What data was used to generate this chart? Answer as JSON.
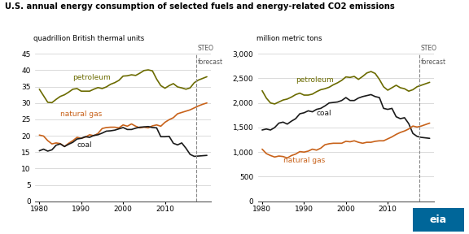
{
  "title": "U.S. annual energy consumption of selected fuels and energy-related CO2 emissions",
  "left_ylabel": "quadrillion British thermal units",
  "right_ylabel": "million metric tons",
  "steo_label": "STEO\nforecast",
  "forecast_year": 2017.5,
  "colors": {
    "petroleum": "#6b6b00",
    "natural_gas": "#c8621a",
    "coal": "#1a1a1a"
  },
  "left_chart": {
    "ylim": [
      0,
      45
    ],
    "yticks": [
      0,
      5,
      10,
      15,
      20,
      25,
      30,
      35,
      40,
      45
    ],
    "xticks": [
      1980,
      1990,
      2000,
      2010
    ],
    "xlim": [
      1979,
      2021
    ],
    "petroleum": [
      34.2,
      32.2,
      30.2,
      30.1,
      31.1,
      32.0,
      32.5,
      33.3,
      34.2,
      34.4,
      33.6,
      33.6,
      33.6,
      34.2,
      34.7,
      34.4,
      34.9,
      35.7,
      36.2,
      36.9,
      38.2,
      38.3,
      38.6,
      38.4,
      39.1,
      39.9,
      40.1,
      39.8,
      37.3,
      35.3,
      34.5,
      35.3,
      35.9,
      34.9,
      34.6,
      34.2,
      34.6,
      36.2,
      37.0,
      37.5,
      38.0
    ],
    "natural_gas": [
      20.2,
      19.9,
      18.5,
      17.5,
      17.8,
      17.6,
      16.7,
      17.7,
      18.5,
      19.5,
      19.2,
      19.6,
      20.3,
      20.0,
      20.7,
      22.2,
      22.5,
      22.6,
      22.6,
      22.4,
      23.3,
      22.9,
      23.6,
      22.9,
      22.4,
      22.6,
      22.4,
      23.0,
      23.3,
      22.9,
      24.1,
      24.9,
      25.5,
      26.7,
      27.1,
      27.5,
      27.9,
      28.5,
      29.1,
      29.6,
      30.0
    ],
    "coal": [
      15.4,
      15.9,
      15.3,
      15.7,
      17.1,
      17.5,
      16.7,
      17.4,
      18.0,
      19.0,
      19.2,
      19.7,
      19.5,
      20.1,
      20.3,
      20.8,
      21.4,
      21.5,
      21.7,
      22.1,
      22.5,
      21.9,
      21.9,
      22.3,
      22.6,
      22.7,
      22.8,
      22.5,
      22.4,
      19.7,
      19.7,
      19.8,
      17.7,
      17.2,
      17.8,
      16.2,
      14.3,
      13.7,
      13.8,
      13.9,
      14.0
    ],
    "label_petroleum": [
      1988,
      37.0,
      "petroleum"
    ],
    "label_natural_gas": [
      1985,
      26.0,
      "natural gas"
    ],
    "label_coal": [
      1989,
      16.5,
      "coal"
    ]
  },
  "right_chart": {
    "ylim": [
      0,
      3000
    ],
    "yticks": [
      0,
      500,
      1000,
      1500,
      2000,
      2500,
      3000
    ],
    "xticks": [
      1980,
      1990,
      2000,
      2010
    ],
    "xlim": [
      1979,
      2021
    ],
    "petroleum": [
      2250,
      2100,
      2000,
      1980,
      2020,
      2060,
      2080,
      2120,
      2170,
      2200,
      2160,
      2160,
      2180,
      2230,
      2270,
      2290,
      2320,
      2370,
      2410,
      2460,
      2530,
      2520,
      2540,
      2480,
      2540,
      2610,
      2640,
      2600,
      2480,
      2330,
      2260,
      2310,
      2360,
      2310,
      2290,
      2240,
      2270,
      2330,
      2360,
      2390,
      2420
    ],
    "coal": [
      1450,
      1470,
      1450,
      1500,
      1590,
      1610,
      1570,
      1630,
      1680,
      1780,
      1800,
      1840,
      1820,
      1870,
      1890,
      1940,
      2000,
      2010,
      2020,
      2050,
      2110,
      2050,
      2050,
      2100,
      2130,
      2150,
      2170,
      2130,
      2110,
      1890,
      1870,
      1890,
      1720,
      1680,
      1700,
      1580,
      1380,
      1320,
      1300,
      1290,
      1280
    ],
    "natural_gas": [
      1060,
      970,
      930,
      900,
      920,
      910,
      880,
      930,
      960,
      1010,
      1000,
      1020,
      1060,
      1040,
      1080,
      1150,
      1170,
      1180,
      1180,
      1180,
      1220,
      1210,
      1230,
      1200,
      1180,
      1200,
      1200,
      1220,
      1230,
      1230,
      1270,
      1310,
      1360,
      1400,
      1430,
      1470,
      1530,
      1510,
      1530,
      1560,
      1590
    ],
    "label_petroleum": [
      1988,
      2430,
      "petroleum"
    ],
    "label_coal": [
      1993,
      1740,
      "coal"
    ],
    "label_natural_gas": [
      1985,
      790,
      "natural gas"
    ]
  },
  "background_color": "#ffffff",
  "grid_color": "#cccccc",
  "font_color": "#000000",
  "line_width": 1.2
}
